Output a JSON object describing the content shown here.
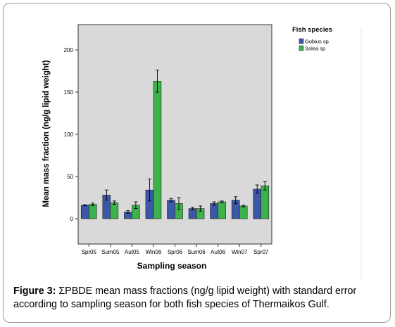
{
  "chart_data": {
    "type": "bar",
    "xlabel": "Sampling season",
    "ylabel": "Mean mass fraction (ng/g lipid weight)",
    "categories": [
      "Spr05",
      "Sum05",
      "Aut05",
      "Win06",
      "Spr06",
      "Sum06",
      "Aut06",
      "Win07",
      "Spr07"
    ],
    "ylim": [
      -30,
      230
    ],
    "yticks": [
      0,
      50,
      100,
      150,
      200
    ],
    "grid": false,
    "legend": {
      "title": "Fish species",
      "placement": "right"
    },
    "series": [
      {
        "name": "Gobius sp",
        "color": "#3b57a8",
        "values": [
          16,
          28,
          8,
          34,
          22,
          12,
          18,
          22,
          35
        ],
        "errors": [
          0.5,
          6,
          1.5,
          13,
          2,
          1.5,
          2,
          4,
          5
        ]
      },
      {
        "name": "Solea sp",
        "color": "#3cb34a",
        "values": [
          17,
          19,
          16,
          163,
          18,
          12,
          20,
          15,
          39
        ],
        "errors": [
          1.5,
          2,
          4,
          13,
          7,
          3,
          1,
          1,
          5
        ]
      }
    ]
  },
  "caption": {
    "label": "Figure 3:",
    "text": " ΣPBDE mean mass fractions (ng/g lipid weight) with standard error according to sampling season for both fish species of Thermaikos Gulf."
  }
}
